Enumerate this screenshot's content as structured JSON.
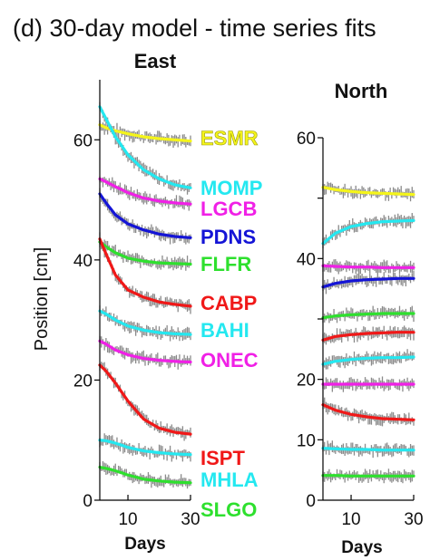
{
  "figure": {
    "title": "(d) 30-day model - time series fits",
    "colors": {
      "axis": "#000000",
      "observations": "#8a8a8a"
    }
  },
  "chart_data": [
    {
      "type": "line",
      "title": "East",
      "xlabel": "Days",
      "ylabel": "Position [cm]",
      "xlim": [
        1,
        30
      ],
      "ylim": [
        0,
        70
      ],
      "xticks": [
        10,
        30
      ],
      "yticks": [
        0,
        20,
        40,
        60
      ],
      "series": [
        {
          "name": "ESMR",
          "color": "#f5f51a",
          "x": [
            1,
            3,
            6,
            10,
            15,
            20,
            25,
            30
          ],
          "y": [
            62.5,
            62.0,
            61.5,
            61.0,
            60.5,
            60.2,
            60.0,
            59.8
          ]
        },
        {
          "name": "MOMP",
          "color": "#24e8f0",
          "x": [
            1,
            3,
            6,
            10,
            15,
            20,
            25,
            30
          ],
          "y": [
            65.5,
            63.5,
            60.5,
            57.5,
            55.0,
            53.5,
            52.5,
            52.0
          ]
        },
        {
          "name": "LGCB",
          "color": "#f020e6",
          "x": [
            1,
            3,
            6,
            10,
            15,
            20,
            25,
            30
          ],
          "y": [
            53.5,
            53.0,
            52.2,
            51.2,
            50.3,
            49.8,
            49.5,
            49.3
          ]
        },
        {
          "name": "PDNS",
          "color": "#1414d6",
          "x": [
            1,
            3,
            6,
            10,
            15,
            20,
            25,
            30
          ],
          "y": [
            51.0,
            49.5,
            47.5,
            46.0,
            45.0,
            44.3,
            43.9,
            43.7
          ]
        },
        {
          "name": "FLFR",
          "color": "#2ee02e",
          "x": [
            1,
            3,
            6,
            10,
            15,
            20,
            25,
            30
          ],
          "y": [
            43.0,
            42.2,
            41.2,
            40.3,
            39.8,
            39.5,
            39.4,
            39.3
          ]
        },
        {
          "name": "CABP",
          "color": "#f01818",
          "x": [
            1,
            3,
            6,
            10,
            15,
            20,
            25,
            30
          ],
          "y": [
            43.5,
            41.0,
            37.5,
            35.0,
            33.8,
            33.0,
            32.6,
            32.3
          ]
        },
        {
          "name": "BAHI",
          "color": "#24e8f0",
          "x": [
            1,
            3,
            6,
            10,
            15,
            20,
            25,
            30
          ],
          "y": [
            31.5,
            31.0,
            30.0,
            29.0,
            28.3,
            27.9,
            27.7,
            27.6
          ]
        },
        {
          "name": "ONEC",
          "color": "#f020e6",
          "x": [
            1,
            3,
            6,
            10,
            15,
            20,
            25,
            30
          ],
          "y": [
            26.5,
            26.0,
            25.0,
            24.2,
            23.6,
            23.3,
            23.1,
            23.0
          ]
        },
        {
          "name": "ISPT",
          "color": "#f01818",
          "x": [
            1,
            3,
            6,
            10,
            15,
            20,
            25,
            30
          ],
          "y": [
            22.5,
            21.5,
            19.5,
            16.5,
            13.5,
            12.0,
            11.3,
            11.0
          ]
        },
        {
          "name": "MHLA",
          "color": "#24e8f0",
          "x": [
            1,
            3,
            6,
            10,
            15,
            20,
            25,
            30
          ],
          "y": [
            10.0,
            9.9,
            9.5,
            8.8,
            8.2,
            7.9,
            7.7,
            7.6
          ]
        },
        {
          "name": "SLGO",
          "color": "#2ee02e",
          "x": [
            1,
            3,
            6,
            10,
            15,
            20,
            25,
            30
          ],
          "y": [
            5.5,
            5.3,
            4.9,
            4.2,
            3.5,
            3.2,
            3.0,
            2.9
          ]
        }
      ]
    },
    {
      "type": "line",
      "title": "North",
      "xlabel": "Days",
      "ylabel": "",
      "xlim": [
        1,
        30
      ],
      "ylim": [
        0,
        60
      ],
      "xticks": [
        10,
        30
      ],
      "yticks": [
        0,
        10,
        20,
        30,
        40,
        50,
        60
      ],
      "ytick_labels": [
        "0",
        "10",
        "20",
        "",
        "40",
        "",
        "60"
      ],
      "series": [
        {
          "color": "#f5f51a",
          "x": [
            1,
            5,
            10,
            15,
            20,
            25,
            30
          ],
          "y": [
            51.8,
            51.4,
            51.1,
            50.9,
            50.8,
            50.7,
            50.6
          ]
        },
        {
          "color": "#24e8f0",
          "x": [
            1,
            5,
            10,
            15,
            20,
            25,
            30
          ],
          "y": [
            42.5,
            44.2,
            45.3,
            45.8,
            46.1,
            46.2,
            46.3
          ]
        },
        {
          "color": "#f020e6",
          "x": [
            1,
            5,
            10,
            15,
            20,
            25,
            30
          ],
          "y": [
            38.8,
            38.7,
            38.6,
            38.6,
            38.5,
            38.5,
            38.5
          ]
        },
        {
          "color": "#1414d6",
          "x": [
            1,
            5,
            10,
            15,
            20,
            25,
            30
          ],
          "y": [
            35.3,
            35.9,
            36.3,
            36.5,
            36.6,
            36.7,
            36.7
          ]
        },
        {
          "color": "#2ee02e",
          "x": [
            1,
            5,
            10,
            15,
            20,
            25,
            30
          ],
          "y": [
            30.2,
            30.5,
            30.7,
            30.8,
            30.9,
            30.9,
            30.9
          ]
        },
        {
          "color": "#f01818",
          "x": [
            1,
            5,
            10,
            15,
            20,
            25,
            30
          ],
          "y": [
            26.5,
            27.1,
            27.4,
            27.6,
            27.7,
            27.8,
            27.8
          ]
        },
        {
          "color": "#24e8f0",
          "x": [
            1,
            5,
            10,
            15,
            20,
            25,
            30
          ],
          "y": [
            22.5,
            23.0,
            23.3,
            23.5,
            23.6,
            23.6,
            23.7
          ]
        },
        {
          "color": "#f020e6",
          "x": [
            1,
            5,
            10,
            15,
            20,
            25,
            30
          ],
          "y": [
            19.2,
            19.2,
            19.2,
            19.2,
            19.2,
            19.2,
            19.2
          ]
        },
        {
          "color": "#f01818",
          "x": [
            1,
            5,
            10,
            15,
            20,
            25,
            30
          ],
          "y": [
            15.8,
            14.9,
            14.2,
            13.8,
            13.5,
            13.4,
            13.3
          ]
        },
        {
          "color": "#24e8f0",
          "x": [
            1,
            5,
            10,
            15,
            20,
            25,
            30
          ],
          "y": [
            8.6,
            8.5,
            8.4,
            8.4,
            8.3,
            8.3,
            8.3
          ]
        },
        {
          "color": "#2ee02e",
          "x": [
            1,
            5,
            10,
            15,
            20,
            25,
            30
          ],
          "y": [
            4.1,
            4.1,
            4.0,
            4.0,
            4.0,
            4.0,
            4.0
          ]
        }
      ]
    }
  ]
}
